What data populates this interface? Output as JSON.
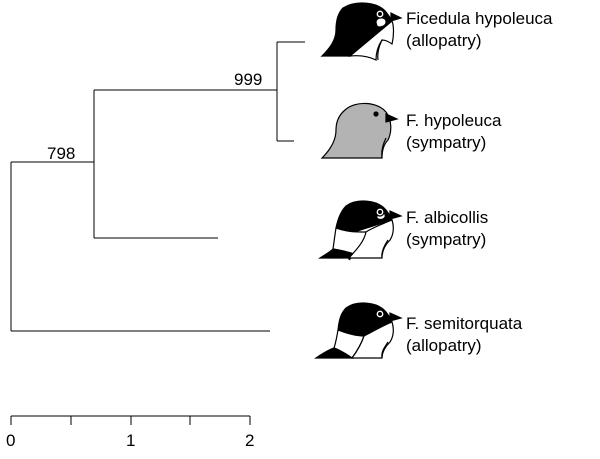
{
  "tree": {
    "bootstrap_values": [
      "999",
      "798"
    ],
    "taxa": [
      {
        "name": "Ficedula hypoleuca",
        "population": "(allopatry)",
        "icon": "black-male-flycatcher-head-icon"
      },
      {
        "name": "F. hypoleuca",
        "population": "(sympatry)",
        "icon": "grey-female-like-flycatcher-head-icon"
      },
      {
        "name": "F. albicollis",
        "population": "(sympatry)",
        "icon": "collared-flycatcher-head-icon"
      },
      {
        "name": "F. semitorquata",
        "population": "(allopatry)",
        "icon": "semi-collared-flycatcher-head-icon"
      }
    ]
  },
  "scale": {
    "ticks": [
      "0",
      "1",
      "2"
    ]
  },
  "colors": {
    "plumage_black": "#000000",
    "plumage_grey": "#b3b3b3"
  }
}
